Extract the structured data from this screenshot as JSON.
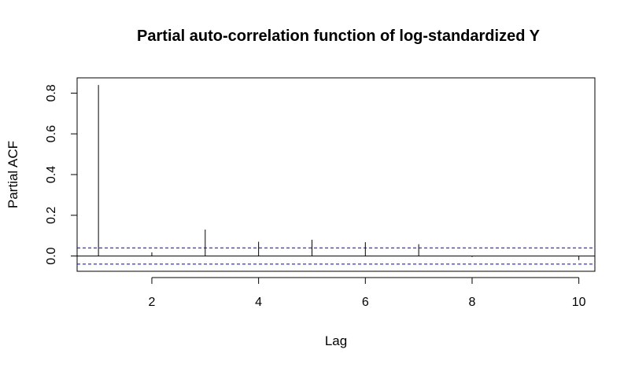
{
  "chart_data": {
    "type": "bar",
    "title": "Partial auto-correlation function of log-standardized Y",
    "xlabel": "Lag",
    "ylabel": "Partial ACF",
    "xlim": [
      0.6,
      10.3
    ],
    "ylim": [
      -0.075,
      0.875
    ],
    "x_ticks": [
      2,
      4,
      6,
      8,
      10
    ],
    "x_tick_labels": [
      "2",
      "4",
      "6",
      "8",
      "10"
    ],
    "y_ticks": [
      0.0,
      0.2,
      0.4,
      0.6,
      0.8
    ],
    "y_tick_labels": [
      "0.0",
      "0.2",
      "0.4",
      "0.6",
      "0.8"
    ],
    "lags": [
      1,
      2,
      3,
      4,
      5,
      6,
      7,
      8,
      9,
      10
    ],
    "values": [
      0.84,
      0.018,
      0.13,
      0.07,
      0.08,
      0.068,
      0.058,
      -0.005,
      0.0,
      -0.02
    ],
    "confidence_bound": 0.04,
    "zero_line": true,
    "colors": {
      "bars": "#000000",
      "confidence": "#0000cc",
      "axes": "#000000"
    }
  }
}
